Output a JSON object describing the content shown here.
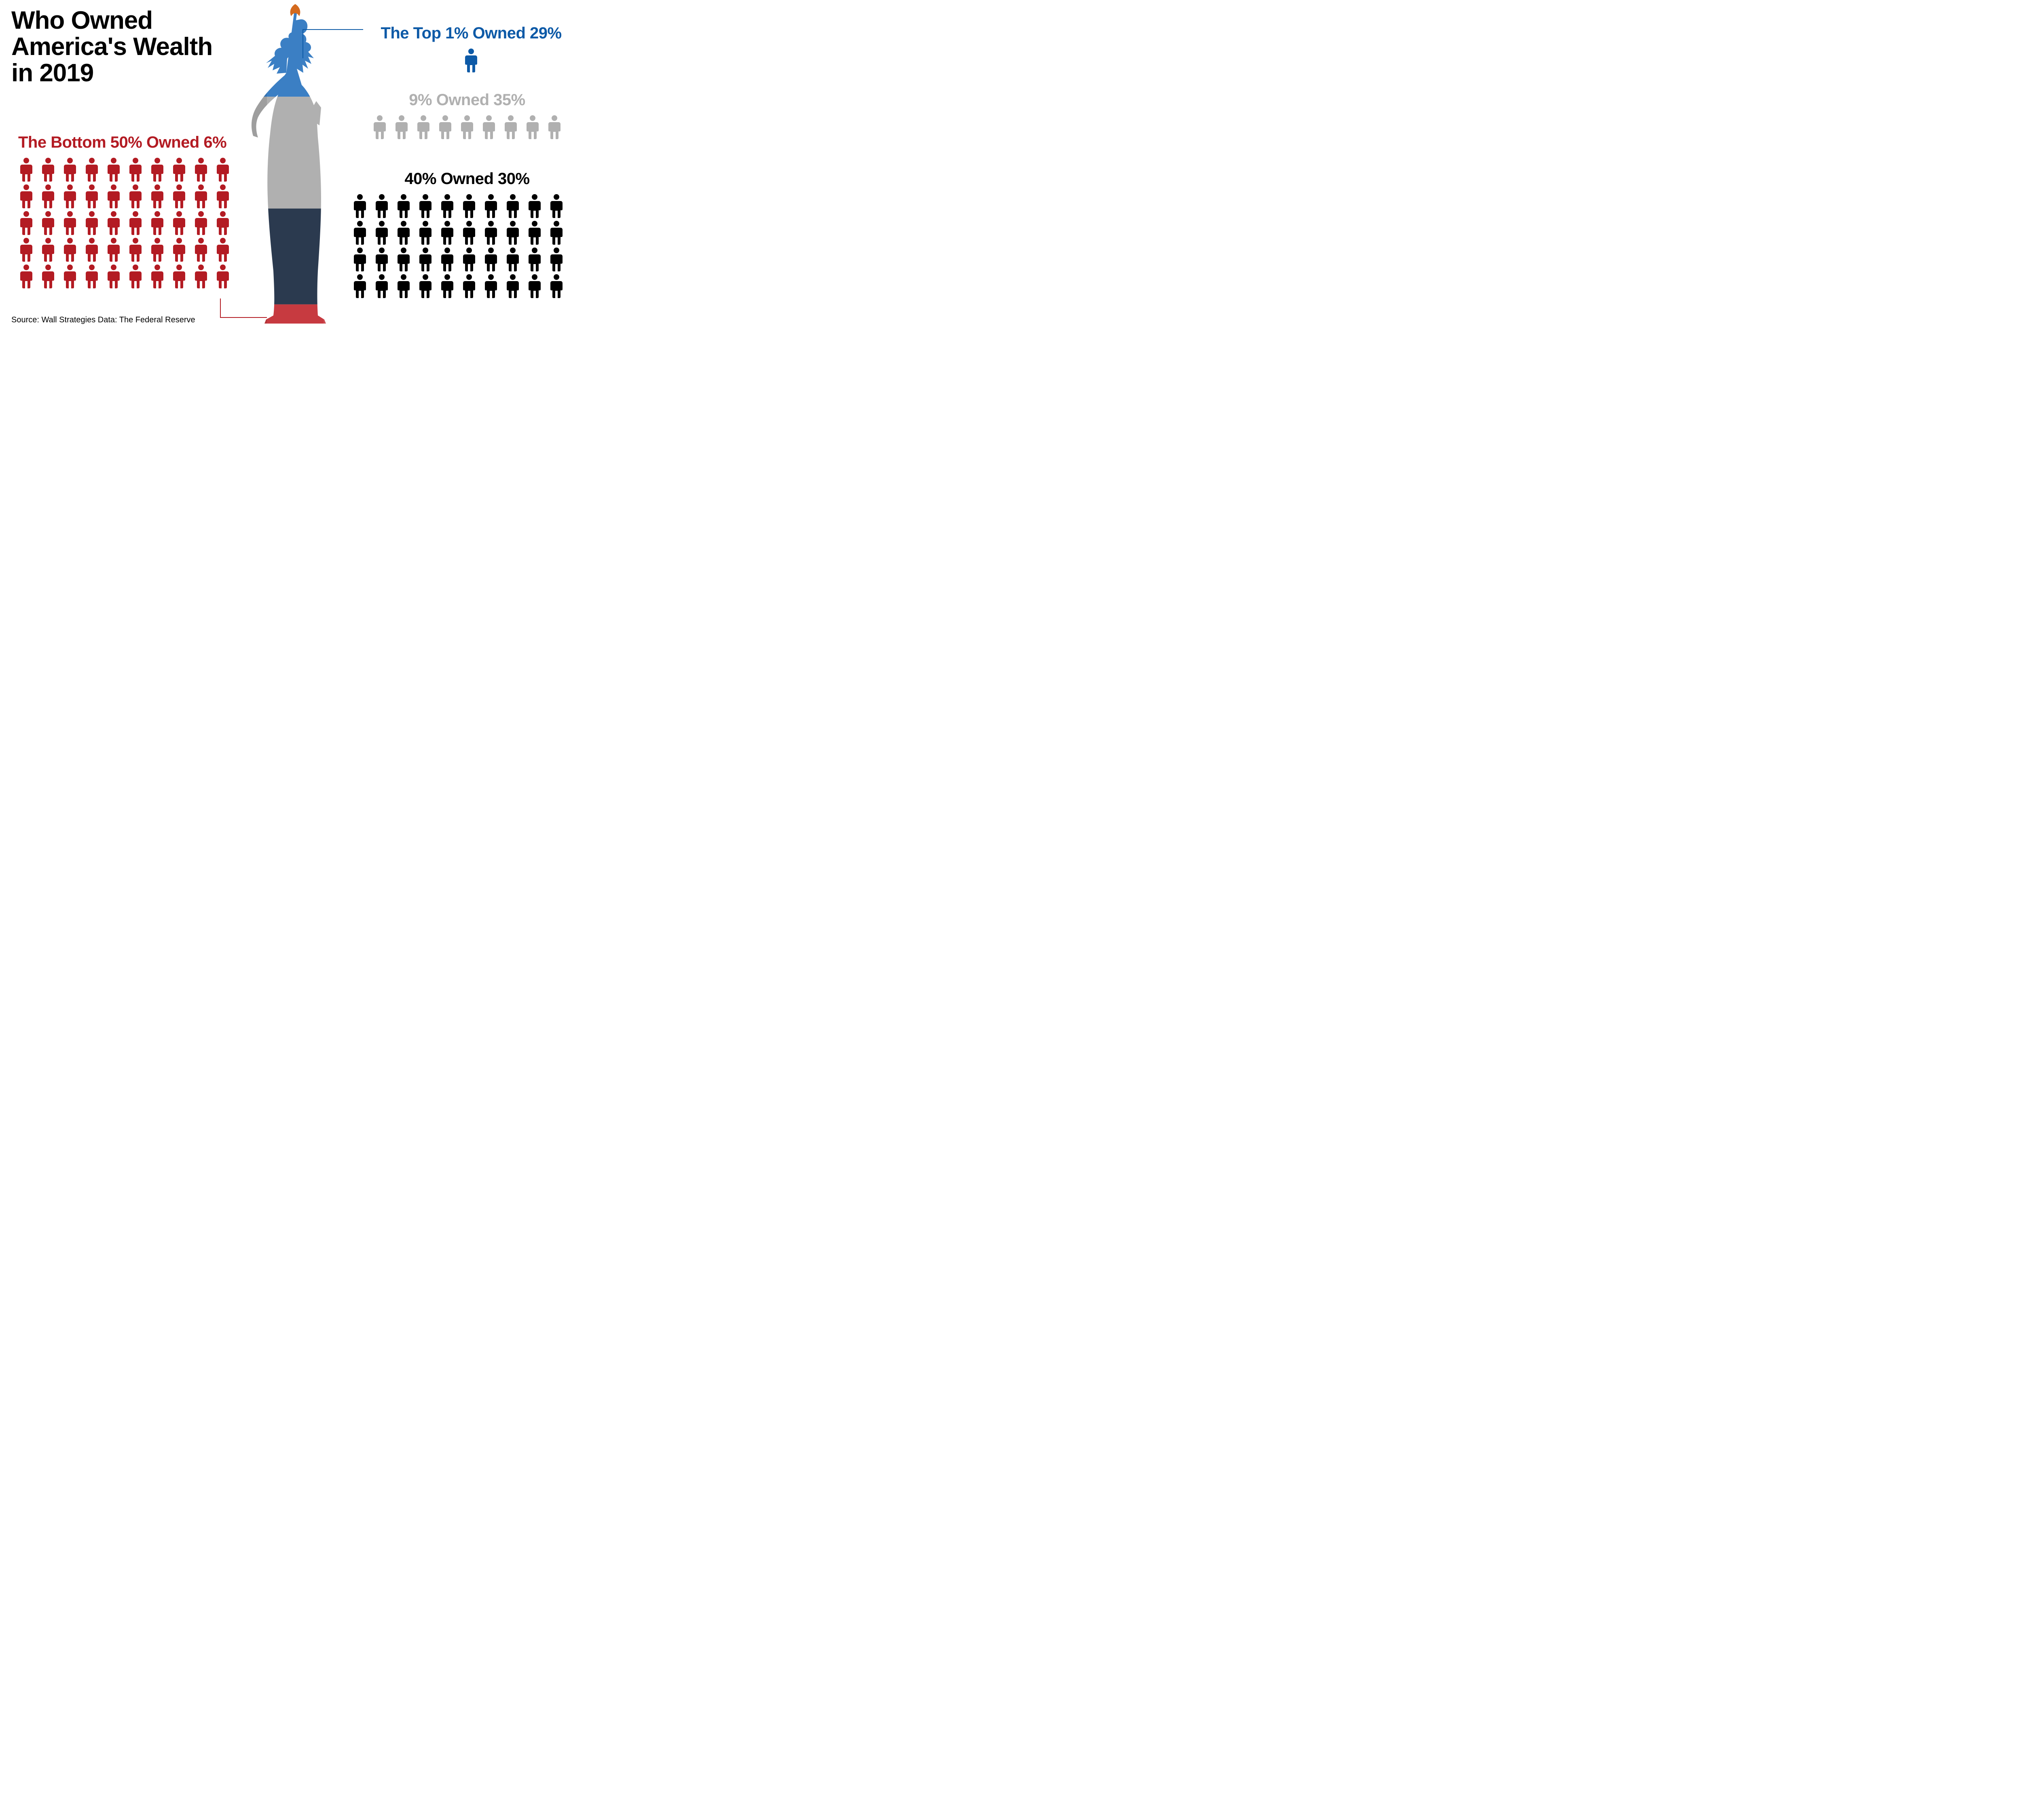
{
  "background_color": "#ffffff",
  "title": {
    "text": "Who Owned\nAmerica's Wealth\nin 2019",
    "font_size": 62,
    "font_weight": 900,
    "color": "#000000"
  },
  "source": {
    "text": "Source: Wall Strategies Data: The Federal Reserve",
    "font_size": 20,
    "color": "#000000"
  },
  "statue": {
    "bands": [
      {
        "name": "top1",
        "color_light": "#3b7fc4",
        "color_dark": "#1f5fa8",
        "pct": 29
      },
      {
        "name": "next9",
        "color_light": "#b0b0b0",
        "color_dark": "#9a9a9a",
        "pct": 35
      },
      {
        "name": "next40",
        "color_light": "#2b3a4f",
        "color_dark": "#1b2736",
        "pct": 30
      },
      {
        "name": "bottom",
        "color_light": "#c73a40",
        "color_dark": "#a62e33",
        "pct": 6
      }
    ]
  },
  "groups": {
    "bottom50": {
      "label": "The Bottom 50% Owned 6%",
      "color": "#b31b23",
      "label_font_size": 40,
      "icon_count": 50,
      "icons_per_row": 10,
      "icon_color": "#b31b23"
    },
    "top1": {
      "label": "The Top 1% Owned 29%",
      "color": "#0d5aa7",
      "label_font_size": 40,
      "icon_count": 1,
      "icons_per_row": 1,
      "icon_color": "#0d5aa7"
    },
    "next9": {
      "label": "9% Owned 35%",
      "color": "#b0b0b0",
      "label_font_size": 40,
      "icon_count": 9,
      "icons_per_row": 9,
      "icon_color": "#b0b0b0"
    },
    "next40": {
      "label": "40% Owned 30%",
      "color": "#000000",
      "label_font_size": 40,
      "icon_count": 40,
      "icons_per_row": 10,
      "icon_color": "#000000"
    }
  },
  "callouts": {
    "top1": {
      "color": "#0d5aa7"
    },
    "bottom": {
      "color": "#b31b23"
    }
  }
}
